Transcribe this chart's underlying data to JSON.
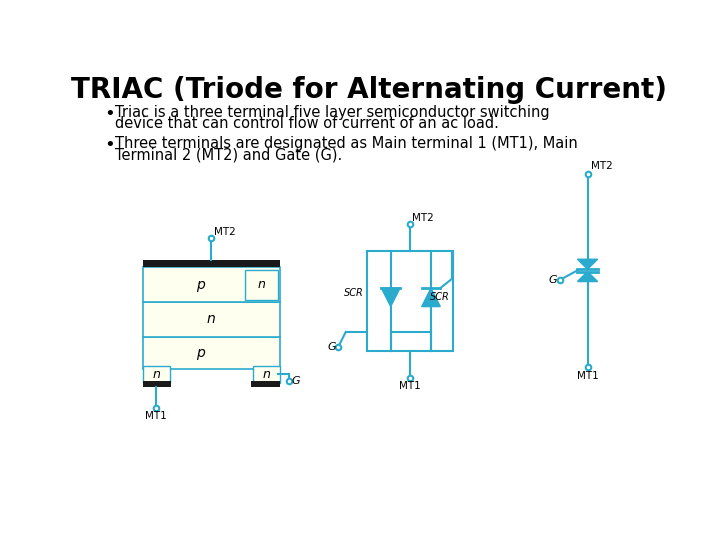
{
  "title": "TRIAC (Triode for Alternating Current)",
  "bullet1_line1": "Triac is a three terminal five layer semiconductor switching",
  "bullet1_line2": "device that can control flow of current of an ac load.",
  "bullet2_line1": "Three terminals are designated as Main terminal 1 (MT1), Main",
  "bullet2_line2": "Terminal 2 (MT2) and Gate (G).",
  "bg_color": "#ffffff",
  "text_color": "#000000",
  "diagram_color": "#2AABCE",
  "layer_fill": "#FFFFF0",
  "black_color": "#1a1a1a",
  "title_fontsize": 20,
  "body_fontsize": 10.5
}
